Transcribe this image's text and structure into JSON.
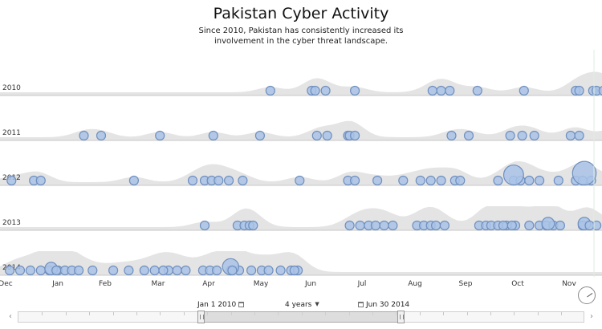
{
  "header": {
    "title": "Pakistan Cyber Activity",
    "subtitle": "Since 2010, Pakistan has consistently increased its involvement in the cyber threat landscape."
  },
  "controls": {
    "start_date": "Jan 1 2010",
    "duration": "4 years",
    "end_date": "Jun 30 2014",
    "prev_arrow": "‹",
    "next_arrow": "›"
  },
  "colors": {
    "dot_fill": "#a9c3e6",
    "dot_stroke": "#6f8fbf",
    "density_fill": "#e4e4e4",
    "row_line": "#c9c9c9"
  },
  "chart_data": {
    "type": "scatter",
    "title": "Pakistan Cyber Activity",
    "subtitle": "Since 2010, Pakistan has consistently increased its involvement in the cyber threat landscape.",
    "rows": [
      "2010",
      "2011",
      "2012",
      "2013",
      "2014"
    ],
    "x_axis": {
      "unit": "day of year",
      "range": [
        "Dec",
        "Nov"
      ],
      "tick_labels": [
        "Dec",
        "Jan",
        "Feb",
        "Mar",
        "Apr",
        "May",
        "Jun",
        "Jul",
        "Aug",
        "Sep",
        "Oct",
        "Nov"
      ]
    },
    "size_note": "dot area proportional to event magnitude (relative 1-8)",
    "series": [
      {
        "year": "2010",
        "points": [
          {
            "x": 125,
            "size": 1
          },
          {
            "x": 149,
            "size": 1
          },
          {
            "x": 151,
            "size": 1
          },
          {
            "x": 157,
            "size": 1
          },
          {
            "x": 174,
            "size": 1
          },
          {
            "x": 219,
            "size": 1
          },
          {
            "x": 224,
            "size": 1
          },
          {
            "x": 229,
            "size": 1
          },
          {
            "x": 245,
            "size": 1
          },
          {
            "x": 272,
            "size": 1
          },
          {
            "x": 302,
            "size": 1
          },
          {
            "x": 304,
            "size": 1
          },
          {
            "x": 312,
            "size": 1
          },
          {
            "x": 314,
            "size": 1
          },
          {
            "x": 318,
            "size": 1
          },
          {
            "x": 323,
            "size": 1
          },
          {
            "x": 343,
            "size": 1
          },
          {
            "x": 357,
            "size": 1
          }
        ]
      },
      {
        "year": "2011",
        "points": [
          {
            "x": 17,
            "size": 1
          },
          {
            "x": 27,
            "size": 1
          },
          {
            "x": 61,
            "size": 1
          },
          {
            "x": 92,
            "size": 1
          },
          {
            "x": 119,
            "size": 1
          },
          {
            "x": 152,
            "size": 1
          },
          {
            "x": 158,
            "size": 1
          },
          {
            "x": 170,
            "size": 1
          },
          {
            "x": 171,
            "size": 1
          },
          {
            "x": 174,
            "size": 1
          },
          {
            "x": 230,
            "size": 1
          },
          {
            "x": 240,
            "size": 1
          },
          {
            "x": 264,
            "size": 1
          },
          {
            "x": 271,
            "size": 1
          },
          {
            "x": 278,
            "size": 1
          },
          {
            "x": 299,
            "size": 1
          },
          {
            "x": 304,
            "size": 1
          },
          {
            "x": 322,
            "size": 1
          },
          {
            "x": 330,
            "size": 1
          },
          {
            "x": 348,
            "size": 1
          },
          {
            "x": 353,
            "size": 1
          }
        ]
      },
      {
        "year": "2012",
        "points": [
          {
            "x": -25,
            "size": 1
          },
          {
            "x": -12,
            "size": 1
          },
          {
            "x": -8,
            "size": 1
          },
          {
            "x": 46,
            "size": 1
          },
          {
            "x": 80,
            "size": 1
          },
          {
            "x": 87,
            "size": 1
          },
          {
            "x": 91,
            "size": 1
          },
          {
            "x": 95,
            "size": 1
          },
          {
            "x": 101,
            "size": 1
          },
          {
            "x": 109,
            "size": 1
          },
          {
            "x": 142,
            "size": 1
          },
          {
            "x": 170,
            "size": 1
          },
          {
            "x": 174,
            "size": 1
          },
          {
            "x": 187,
            "size": 1
          },
          {
            "x": 202,
            "size": 1
          },
          {
            "x": 212,
            "size": 1
          },
          {
            "x": 218,
            "size": 1
          },
          {
            "x": 224,
            "size": 1
          },
          {
            "x": 232,
            "size": 1
          },
          {
            "x": 235,
            "size": 1
          },
          {
            "x": 257,
            "size": 1
          },
          {
            "x": 266,
            "size": 1
          },
          {
            "x": 270,
            "size": 1
          },
          {
            "x": 275,
            "size": 1
          },
          {
            "x": 281,
            "size": 1
          },
          {
            "x": 292,
            "size": 1
          },
          {
            "x": 302,
            "size": 1
          },
          {
            "x": 306,
            "size": 1
          },
          {
            "x": 311,
            "size": 1
          },
          {
            "x": 326,
            "size": 1
          },
          {
            "x": 331,
            "size": 1
          },
          {
            "x": 339,
            "size": 1
          },
          {
            "x": 344,
            "size": 1
          },
          {
            "x": 352,
            "size": 1
          },
          {
            "x": 358,
            "size": 1
          },
          {
            "x": 266,
            "size": 4
          },
          {
            "x": 307,
            "size": 5
          }
        ]
      },
      {
        "year": "2013",
        "points": [
          {
            "x": 87,
            "size": 1
          },
          {
            "x": 106,
            "size": 1
          },
          {
            "x": 110,
            "size": 1
          },
          {
            "x": 113,
            "size": 1
          },
          {
            "x": 115,
            "size": 1
          },
          {
            "x": 171,
            "size": 1
          },
          {
            "x": 177,
            "size": 1
          },
          {
            "x": 182,
            "size": 1
          },
          {
            "x": 186,
            "size": 1
          },
          {
            "x": 191,
            "size": 1
          },
          {
            "x": 196,
            "size": 1
          },
          {
            "x": 210,
            "size": 1
          },
          {
            "x": 214,
            "size": 1
          },
          {
            "x": 218,
            "size": 1
          },
          {
            "x": 221,
            "size": 1
          },
          {
            "x": 226,
            "size": 1
          },
          {
            "x": 246,
            "size": 1
          },
          {
            "x": 250,
            "size": 1
          },
          {
            "x": 253,
            "size": 1
          },
          {
            "x": 257,
            "size": 1
          },
          {
            "x": 262,
            "size": 1
          },
          {
            "x": 267,
            "size": 1
          },
          {
            "x": 275,
            "size": 1
          },
          {
            "x": 281,
            "size": 1
          },
          {
            "x": 285,
            "size": 1
          },
          {
            "x": 289,
            "size": 1
          },
          {
            "x": 293,
            "size": 1
          },
          {
            "x": 306,
            "size": 1
          },
          {
            "x": 314,
            "size": 1
          },
          {
            "x": 330,
            "size": 1
          },
          {
            "x": 336,
            "size": 1
          },
          {
            "x": 345,
            "size": 1
          },
          {
            "x": 348,
            "size": 1
          },
          {
            "x": 353,
            "size": 1
          },
          {
            "x": 260,
            "size": 1
          },
          {
            "x": 265,
            "size": 1
          },
          {
            "x": 286,
            "size": 2
          },
          {
            "x": 307,
            "size": 2
          },
          {
            "x": 310,
            "size": 1
          }
        ]
      },
      {
        "year": "2014",
        "points": [
          {
            "x": -26,
            "size": 1
          },
          {
            "x": -20,
            "size": 1
          },
          {
            "x": -14,
            "size": 1
          },
          {
            "x": -8,
            "size": 1
          },
          {
            "x": -3,
            "size": 1
          },
          {
            "x": 2,
            "size": 1
          },
          {
            "x": 6,
            "size": 1
          },
          {
            "x": 10,
            "size": 1
          },
          {
            "x": 14,
            "size": 1
          },
          {
            "x": 22,
            "size": 1
          },
          {
            "x": 34,
            "size": 1
          },
          {
            "x": 43,
            "size": 1
          },
          {
            "x": 52,
            "size": 1
          },
          {
            "x": 58,
            "size": 1
          },
          {
            "x": 66,
            "size": 1
          },
          {
            "x": 71,
            "size": 1
          },
          {
            "x": 76,
            "size": 1
          },
          {
            "x": 86,
            "size": 1
          },
          {
            "x": 90,
            "size": 1
          },
          {
            "x": 94,
            "size": 1
          },
          {
            "x": 102,
            "size": 1
          },
          {
            "x": 107,
            "size": 1
          },
          {
            "x": 114,
            "size": 1
          },
          {
            "x": 120,
            "size": 1
          },
          {
            "x": 131,
            "size": 1
          },
          {
            "x": 137,
            "size": 1
          },
          {
            "x": 141,
            "size": 1
          },
          {
            "x": -2,
            "size": 2
          },
          {
            "x": 1,
            "size": 1
          },
          {
            "x": 63,
            "size": 1
          },
          {
            "x": 102,
            "size": 3
          },
          {
            "x": 103,
            "size": 1
          },
          {
            "x": 124,
            "size": 1
          },
          {
            "x": 139,
            "size": 1
          }
        ]
      }
    ]
  }
}
